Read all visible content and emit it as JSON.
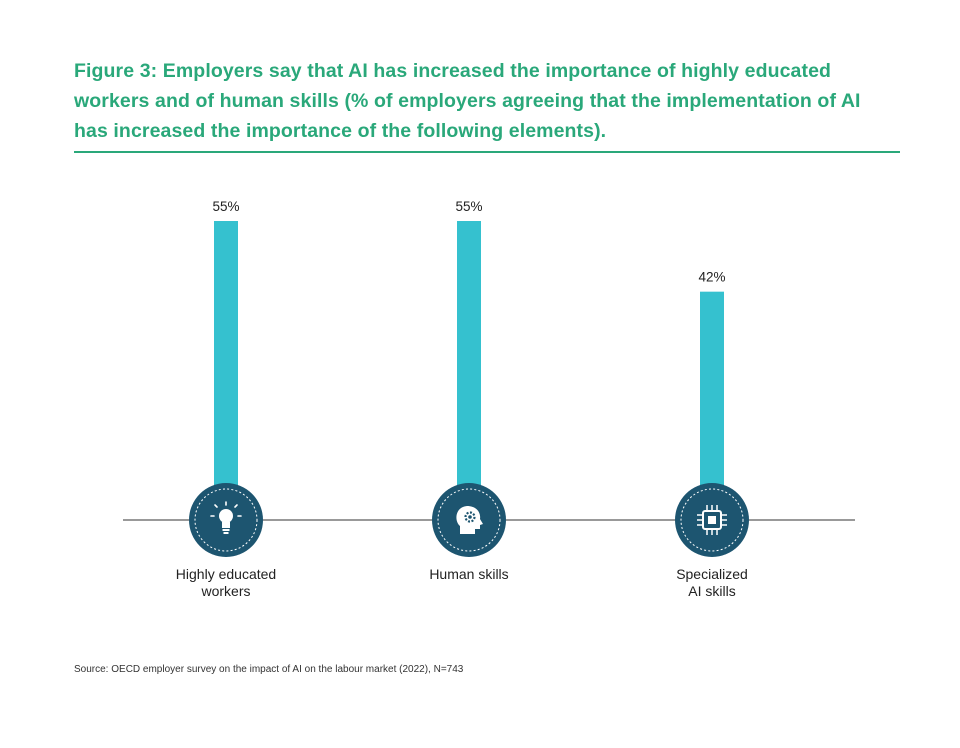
{
  "figure": {
    "title": "Figure 3: Employers say that AI has increased the importance of highly educated workers and of human skills (% of employers agreeing that the implementation of AI has increased the importance of the following elements).",
    "source": "Source: OECD employer survey on the impact of AI on the labour market (2022), N=743"
  },
  "colors": {
    "title": "#2aa87a",
    "bar": "#35c1cf",
    "icon_circle": "#1d5570",
    "baseline": "#333333"
  },
  "chart_data": {
    "type": "bar",
    "title": "Figure 3: Employers say that AI has increased the importance of highly educated workers and of human skills",
    "categories": [
      "Highly educated workers",
      "Human skills",
      "Specialized AI skills"
    ],
    "category_lines": [
      [
        "Highly educated",
        "workers"
      ],
      [
        "Human skills"
      ],
      [
        "Specialized",
        "AI skills"
      ]
    ],
    "icons": [
      "lightbulb-icon",
      "head-gear-icon",
      "ai-chip-icon"
    ],
    "values": [
      55,
      55,
      42
    ],
    "value_labels": [
      "55%",
      "55%",
      "42%"
    ],
    "unit": "%",
    "ylim": [
      0,
      55
    ],
    "xlabel": "",
    "ylabel": "",
    "grid": false
  }
}
